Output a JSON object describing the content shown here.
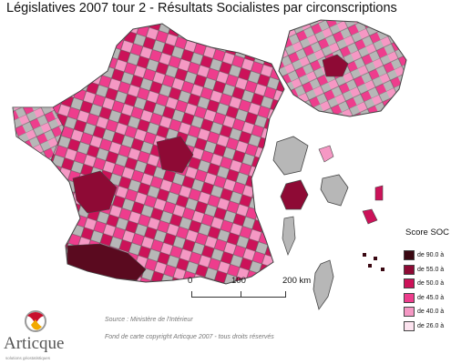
{
  "title": "Législatives 2007 tour 2 - Résultats Socialistes par circonscriptions",
  "legend": {
    "title": "Score SOC",
    "items": [
      {
        "label": "de 90.0 à",
        "color": "#3a0812"
      },
      {
        "label": "de 55.0 à",
        "color": "#8e0a35"
      },
      {
        "label": "de 50.0 à",
        "color": "#cc1259"
      },
      {
        "label": "de 45.0 à",
        "color": "#ee3d8d"
      },
      {
        "label": "de 40.0 à",
        "color": "#f598c4"
      },
      {
        "label": "de 26.0 à",
        "color": "#fce3ef"
      }
    ]
  },
  "scale": {
    "labels": [
      "0",
      "100",
      "200 km"
    ]
  },
  "source": "Source : Ministère de l'Intérieur",
  "credit": "Fond de carte copyright Articque 2007 - tous droits réservés",
  "logo": {
    "name": "Articque",
    "tagline": "solutions géostatistiques"
  },
  "colors": {
    "no_data": "#b7b7b7",
    "border": "#555555"
  }
}
